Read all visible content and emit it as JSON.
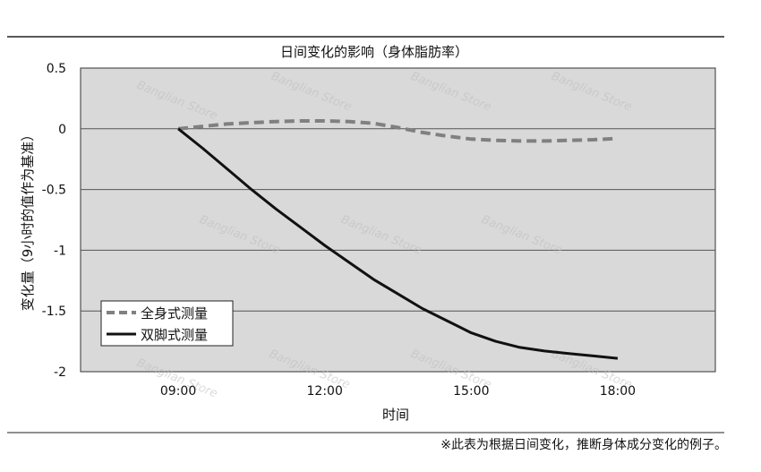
{
  "chart_data": {
    "type": "line",
    "title": "日间变化的影响（身体脂肪率）",
    "xlabel": "时间",
    "ylabel": "变化量（9小时的值作为基准）",
    "x_ticks": [
      "09:00",
      "12:00",
      "15:00",
      "18:00"
    ],
    "y_ticks": [
      "0.5",
      "0",
      "-0.5",
      "-1",
      "-1.5",
      "-2"
    ],
    "ylim": [
      -2,
      0.5
    ],
    "xlim": [
      7.0,
      20.0
    ],
    "grid": true,
    "legend_position": "bottom-left",
    "series": [
      {
        "name": "全身式测量",
        "style": "dashed",
        "color": "#808080",
        "x": [
          9.0,
          9.5,
          10.0,
          10.5,
          11.0,
          11.5,
          12.0,
          12.5,
          13.0,
          13.5,
          14.0,
          14.5,
          15.0,
          15.5,
          16.0,
          16.5,
          17.0,
          17.5,
          18.0
        ],
        "y": [
          0.0,
          0.02,
          0.04,
          0.05,
          0.06,
          0.065,
          0.065,
          0.06,
          0.045,
          0.01,
          -0.03,
          -0.06,
          -0.085,
          -0.095,
          -0.1,
          -0.1,
          -0.095,
          -0.09,
          -0.08
        ]
      },
      {
        "name": "双脚式测量",
        "style": "solid",
        "color": "#111111",
        "x": [
          9.0,
          9.5,
          10.0,
          10.5,
          11.0,
          11.5,
          12.0,
          12.5,
          13.0,
          13.5,
          14.0,
          14.5,
          15.0,
          15.5,
          16.0,
          16.5,
          17.0,
          17.5,
          18.0
        ],
        "y": [
          0.0,
          -0.16,
          -0.33,
          -0.5,
          -0.66,
          -0.81,
          -0.96,
          -1.1,
          -1.24,
          -1.36,
          -1.48,
          -1.58,
          -1.68,
          -1.75,
          -1.8,
          -1.83,
          -1.85,
          -1.87,
          -1.89
        ]
      }
    ]
  },
  "footnote": "※此表为根据日间变化，推断身体成分变化的例子。",
  "watermark_text": "Banglian Store"
}
